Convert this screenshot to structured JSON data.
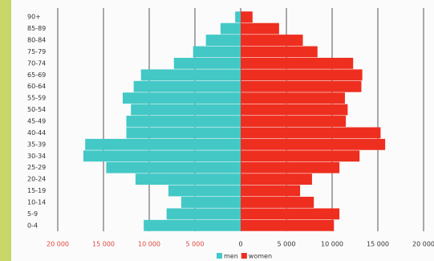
{
  "chart_data": {
    "type": "bar",
    "orientation": "horizontal",
    "stacked": false,
    "categories": [
      "0-4",
      "5-9",
      "10-14",
      "15-19",
      "20-24",
      "25-29",
      "30-34",
      "35-39",
      "40-44",
      "45-49",
      "50-54",
      "55-59",
      "60-64",
      "65-69",
      "70-74",
      "75-79",
      "80-84",
      "85-89",
      "90+"
    ],
    "series": [
      {
        "name": "men",
        "color": "#43c8c6",
        "values": [
          -10600,
          -8100,
          -6500,
          -7900,
          -11500,
          -14700,
          -17200,
          -17000,
          -12500,
          -12500,
          -12000,
          -12900,
          -11700,
          -10900,
          -7300,
          -5200,
          -3800,
          -2200,
          -600
        ]
      },
      {
        "name": "women",
        "color": "#ee2e1f",
        "values": [
          10200,
          10800,
          8000,
          6500,
          7800,
          10800,
          13000,
          15800,
          15300,
          11500,
          11700,
          11400,
          13200,
          13300,
          12300,
          8400,
          6800,
          4200,
          1300
        ]
      }
    ],
    "xlim": [
      -20000,
      20000
    ],
    "xticks": [
      {
        "value": -20000,
        "label": "20 000"
      },
      {
        "value": -15000,
        "label": "15 000"
      },
      {
        "value": -10000,
        "label": "10 000"
      },
      {
        "value": -5000,
        "label": "5 000"
      },
      0,
      {
        "value": 5000,
        "label": "5 000"
      },
      {
        "value": 10000,
        "label": "10 000"
      },
      {
        "value": 15000,
        "label": "15 000"
      },
      {
        "value": 20000,
        "label": "20 000"
      }
    ],
    "grid": true,
    "legend": "bottom"
  }
}
